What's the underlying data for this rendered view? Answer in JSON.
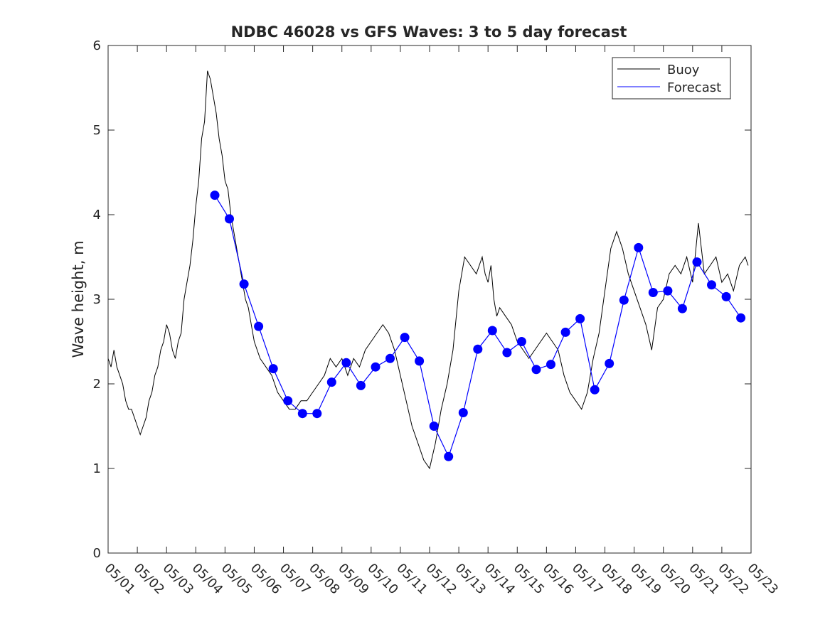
{
  "chart_data": {
    "type": "line",
    "title": "NDBC 46028 vs GFS Waves: 3 to 5 day forecast",
    "xlabel": "",
    "ylabel": "Wave height, m",
    "xlim": [
      0,
      22
    ],
    "ylim": [
      0,
      6
    ],
    "grid": false,
    "legend_position": "top-right",
    "x_tick_labels": [
      "05/01",
      "05/02",
      "05/03",
      "05/04",
      "05/05",
      "05/06",
      "05/07",
      "05/08",
      "05/09",
      "05/10",
      "05/11",
      "05/12",
      "05/13",
      "05/14",
      "05/15",
      "05/16",
      "05/17",
      "05/18",
      "05/19",
      "05/20",
      "05/21",
      "05/22",
      "05/23"
    ],
    "y_ticks": [
      0,
      1,
      2,
      3,
      4,
      5,
      6
    ],
    "x_unit": "days since 05/01 00:00",
    "colors": {
      "buoy": "#000000",
      "forecast": "#0000ff"
    },
    "series": [
      {
        "name": "Buoy",
        "x": [
          0,
          0.1,
          0.2,
          0.3,
          0.4,
          0.5,
          0.6,
          0.7,
          0.8,
          0.9,
          1.0,
          1.1,
          1.2,
          1.3,
          1.4,
          1.5,
          1.6,
          1.7,
          1.8,
          1.9,
          2.0,
          2.1,
          2.2,
          2.3,
          2.4,
          2.5,
          2.6,
          2.7,
          2.8,
          2.9,
          3.0,
          3.1,
          3.2,
          3.3,
          3.4,
          3.5,
          3.6,
          3.7,
          3.8,
          3.9,
          4.0,
          4.1,
          4.2,
          4.3,
          4.4,
          4.5,
          4.6,
          4.7,
          4.8,
          4.9,
          5.0,
          5.2,
          5.4,
          5.6,
          5.8,
          6.0,
          6.2,
          6.4,
          6.6,
          6.8,
          7.0,
          7.2,
          7.4,
          7.6,
          7.8,
          8.0,
          8.2,
          8.4,
          8.6,
          8.8,
          9.0,
          9.2,
          9.4,
          9.6,
          9.8,
          10.0,
          10.2,
          10.4,
          10.6,
          10.8,
          11.0,
          11.2,
          11.4,
          11.6,
          11.8,
          12.0,
          12.2,
          12.4,
          12.6,
          12.8,
          12.9,
          13.0,
          13.1,
          13.2,
          13.3,
          13.4,
          13.6,
          13.8,
          14.0,
          14.2,
          14.4,
          14.6,
          14.8,
          15.0,
          15.2,
          15.4,
          15.6,
          15.8,
          16.0,
          16.2,
          16.4,
          16.6,
          16.8,
          17.0,
          17.2,
          17.4,
          17.6,
          17.8,
          18.0,
          18.2,
          18.4,
          18.6,
          18.8,
          19.0,
          19.2,
          19.4,
          19.6,
          19.8,
          20.0,
          20.2,
          20.4,
          20.6,
          20.8,
          21.0,
          21.2,
          21.4,
          21.6,
          21.8,
          21.9
        ],
        "y": [
          2.3,
          2.2,
          2.4,
          2.2,
          2.1,
          2.0,
          1.8,
          1.7,
          1.7,
          1.6,
          1.5,
          1.4,
          1.5,
          1.6,
          1.8,
          1.9,
          2.1,
          2.2,
          2.4,
          2.5,
          2.7,
          2.6,
          2.4,
          2.3,
          2.5,
          2.6,
          3.0,
          3.2,
          3.4,
          3.7,
          4.1,
          4.4,
          4.9,
          5.1,
          5.7,
          5.6,
          5.4,
          5.2,
          4.9,
          4.7,
          4.4,
          4.3,
          4.0,
          3.8,
          3.6,
          3.4,
          3.2,
          3.0,
          2.9,
          2.7,
          2.5,
          2.3,
          2.2,
          2.1,
          1.9,
          1.8,
          1.7,
          1.7,
          1.8,
          1.8,
          1.9,
          2.0,
          2.1,
          2.3,
          2.2,
          2.3,
          2.1,
          2.3,
          2.2,
          2.4,
          2.5,
          2.6,
          2.7,
          2.6,
          2.4,
          2.1,
          1.8,
          1.5,
          1.3,
          1.1,
          1.0,
          1.3,
          1.7,
          2.0,
          2.4,
          3.1,
          3.5,
          3.4,
          3.3,
          3.5,
          3.3,
          3.2,
          3.4,
          3.0,
          2.8,
          2.9,
          2.8,
          2.7,
          2.5,
          2.4,
          2.3,
          2.4,
          2.5,
          2.6,
          2.5,
          2.4,
          2.1,
          1.9,
          1.8,
          1.7,
          1.9,
          2.3,
          2.6,
          3.1,
          3.6,
          3.8,
          3.6,
          3.3,
          3.1,
          2.9,
          2.7,
          2.4,
          2.9,
          3.0,
          3.3,
          3.4,
          3.3,
          3.5,
          3.2,
          3.9,
          3.3,
          3.4,
          3.5,
          3.2,
          3.3,
          3.1,
          3.4,
          3.5,
          3.4
        ]
      },
      {
        "name": "Forecast",
        "x": [
          3.65,
          4.15,
          4.65,
          5.15,
          5.65,
          6.15,
          6.65,
          7.15,
          7.65,
          8.15,
          8.65,
          9.15,
          9.65,
          10.15,
          10.65,
          11.15,
          11.65,
          12.15,
          12.65,
          13.15,
          13.65,
          14.15,
          14.65,
          15.15,
          15.65,
          16.15,
          16.65,
          17.15,
          17.65,
          18.15,
          18.65,
          19.15,
          19.65,
          20.15,
          20.65,
          21.15,
          21.65
        ],
        "y": [
          4.23,
          3.95,
          3.18,
          2.68,
          2.18,
          1.8,
          1.65,
          1.65,
          2.02,
          2.25,
          1.98,
          2.2,
          2.3,
          2.55,
          2.27,
          1.5,
          1.14,
          1.66,
          2.41,
          2.63,
          2.37,
          2.5,
          2.17,
          2.23,
          2.61,
          2.77,
          1.93,
          2.24,
          2.99,
          3.61,
          3.08,
          3.1,
          2.89,
          3.44,
          3.17,
          3.03,
          2.78
        ]
      }
    ]
  }
}
